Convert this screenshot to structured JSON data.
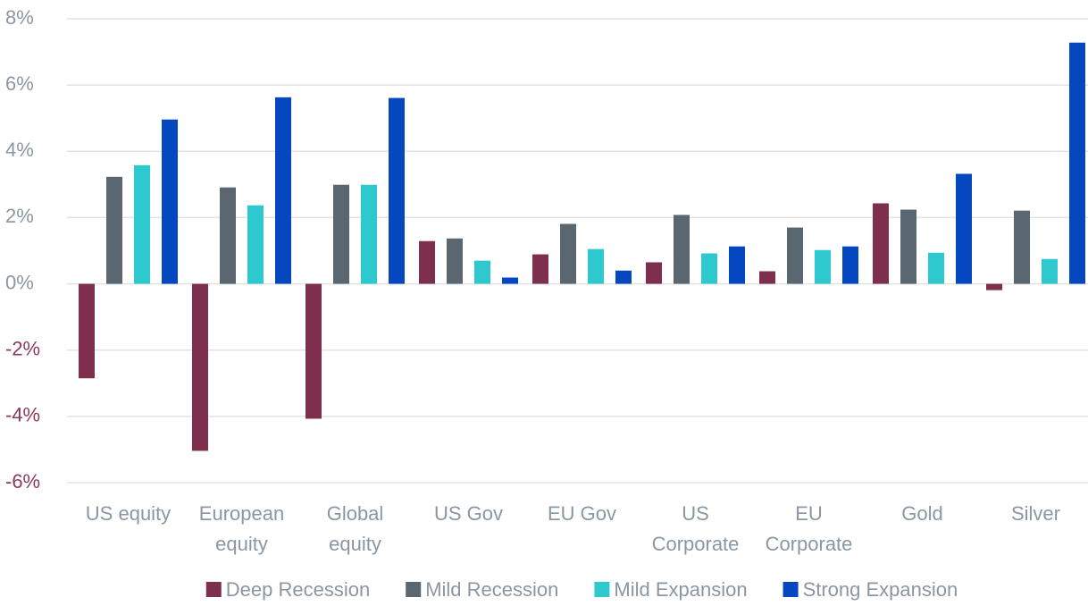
{
  "chart_data": {
    "type": "bar",
    "categories": [
      "US equity",
      "European equity",
      "Global equity",
      "US Gov",
      "EU Gov",
      "US Corporate",
      "EU Corporate",
      "Gold",
      "Silver"
    ],
    "series": [
      {
        "name": "Deep Recession",
        "color": "#7f2f4e",
        "values": [
          -2.85,
          -5.04,
          -4.07,
          1.29,
          0.89,
          0.65,
          0.38,
          2.43,
          -0.19
        ]
      },
      {
        "name": "Mild Recession",
        "color": "#5a6670",
        "values": [
          3.23,
          2.91,
          2.99,
          1.37,
          1.81,
          2.08,
          1.7,
          2.24,
          2.21
        ]
      },
      {
        "name": "Mild Expansion",
        "color": "#2ec9cf",
        "values": [
          3.58,
          2.37,
          2.99,
          0.7,
          1.05,
          0.92,
          1.02,
          0.94,
          0.75
        ]
      },
      {
        "name": "Strong Expansion",
        "color": "#0447bf",
        "values": [
          4.96,
          5.63,
          5.61,
          0.19,
          0.4,
          1.13,
          1.13,
          3.32,
          7.28
        ]
      }
    ],
    "ylim": [
      -6,
      8
    ],
    "yticks": [
      {
        "value": -6,
        "label": "-6%"
      },
      {
        "value": -4,
        "label": "-4%"
      },
      {
        "value": -2,
        "label": "-2%"
      },
      {
        "value": 0,
        "label": "0%"
      },
      {
        "value": 2,
        "label": "2%"
      },
      {
        "value": 4,
        "label": "4%"
      },
      {
        "value": 6,
        "label": "6%"
      },
      {
        "value": 8,
        "label": "8%"
      }
    ],
    "grid": true,
    "legend": "bottom"
  }
}
